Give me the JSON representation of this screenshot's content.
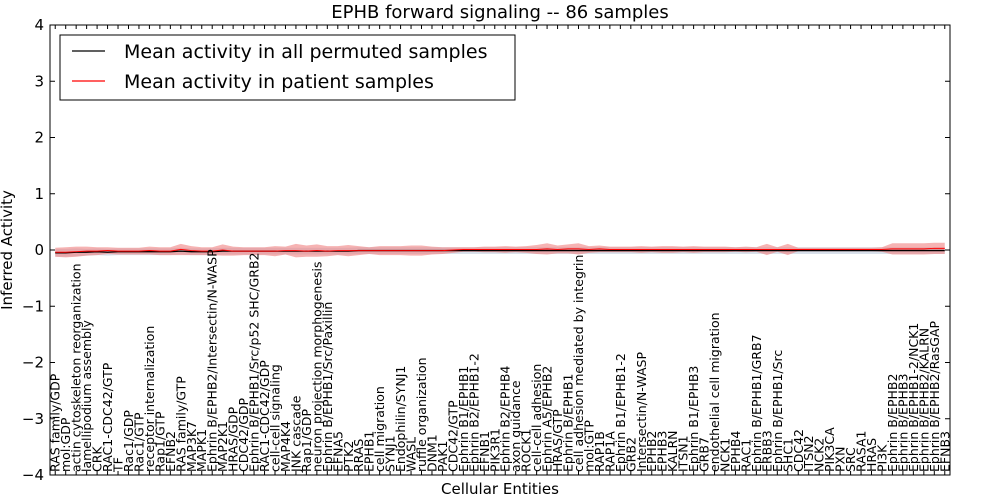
{
  "chart_data": {
    "type": "line",
    "title": "EPHB forward signaling -- 86 samples",
    "xlabel": "Cellular Entities",
    "ylabel": "Inferred Activity",
    "ylim": [
      -4,
      4
    ],
    "yticks": [
      -4,
      -3,
      -2,
      -1,
      0,
      1,
      2,
      3,
      4
    ],
    "ytick_labels": [
      "−4",
      "−3",
      "−2",
      "−1",
      "0",
      "1",
      "2",
      "3",
      "4"
    ],
    "grid": false,
    "legend_position": "top-left",
    "categories": [
      "RAS family/GDP",
      "mol:GDP",
      "actin cytoskeleton reorganization",
      "lamellipodium assembly",
      "CRK",
      "RAC1-CDC42/GTP",
      "TF",
      "Rac1/GDP",
      "Rac1/GTP",
      "receptor internalization",
      "Rap1/GTP",
      "EFNB2",
      "RAS family/GTP",
      "MAP3K7",
      "MAPK1",
      "Ephrin B/EPHB2/Intersectin/N-WASP",
      "MAP2K1",
      "HRAS/GDP",
      "CDC42/GDP",
      "Ephrin B/EPHB1/Src/p52 SHC/GRB2",
      "RAC1-CDC42/GDP",
      "cell-cell signaling",
      "MAP4K4",
      "JNK cascade",
      "Rap1/GDP",
      "neuron projection morphogenesis",
      "Ephrin B/EPHB1/Src/Paxillin",
      "EFNA5",
      "PTK2",
      "RRAS",
      "EPHB1",
      "cell migration",
      "SYNJ1",
      "Endophilin/SYNJ1",
      "WASL",
      "ruffle organization",
      "DNM1",
      "PAK1",
      "CDC42/GTP",
      "Ephrin B1/EPHB1",
      "Ephrin B2/EPHB1-2",
      "EFNB1",
      "PIK3R1",
      "Ephrin B2/EPHB4",
      "axon guidance",
      "ROCK1",
      "cell-cell adhesion",
      "Ephrin A5/EPHB2",
      "HRAS/GTP",
      "Ephrin B/EPHB1",
      "cell adhesion mediated by integrin",
      "mol:GTP",
      "RAP1B",
      "RAP1A",
      "Ephrin B1/EPHB1-2",
      "GRB2",
      "Intersectin/N-WASP",
      "EPHB2",
      "EPHB3",
      "KALRN",
      "ITSN1",
      "Ephrin B1/EPHB3",
      "GRB7",
      "endothelial cell migration",
      "NCK1",
      "EPHB4",
      "RAC1",
      "Ephrin B/EPHB1/GRB7",
      "ERBB3",
      "Ephrin B/EPHB1/Src",
      "SHC1",
      "CDC42",
      "ITSN2",
      "NCK2",
      "PIK3CA",
      "PXN",
      "SRC",
      "RASA1",
      "HRAS",
      "PI3K",
      "Ephrin B/EPHB2",
      "Ephrin B/EPHB3",
      "Ephrin B/EPHB1-2/NCK1",
      "Ephrin B/EPHB2/KALRN",
      "Ephrin B/EPHB2/RasGAP",
      "EFNB3"
    ],
    "series": [
      {
        "name": "Mean activity in all permuted samples",
        "color": "#000000",
        "band_color": "#b9c7d9",
        "values": [
          -0.05,
          -0.05,
          -0.04,
          -0.04,
          -0.03,
          -0.04,
          -0.03,
          -0.03,
          -0.03,
          -0.03,
          -0.03,
          -0.03,
          -0.02,
          -0.03,
          -0.03,
          -0.03,
          -0.02,
          -0.02,
          -0.02,
          -0.02,
          -0.02,
          -0.02,
          -0.02,
          -0.02,
          -0.02,
          -0.02,
          -0.02,
          -0.02,
          -0.02,
          -0.01,
          -0.01,
          -0.01,
          -0.01,
          -0.01,
          -0.01,
          -0.01,
          -0.01,
          -0.01,
          -0.01,
          -0.01,
          -0.01,
          -0.01,
          -0.01,
          -0.01,
          -0.01,
          -0.01,
          -0.01,
          -0.01,
          -0.01,
          -0.01,
          -0.01,
          -0.01,
          -0.01,
          -0.01,
          -0.01,
          -0.01,
          -0.01,
          -0.01,
          -0.01,
          -0.01,
          -0.01,
          -0.01,
          -0.01,
          -0.01,
          -0.01,
          -0.01,
          -0.01,
          -0.01,
          -0.01,
          -0.01,
          -0.01,
          -0.01,
          -0.01,
          -0.01,
          -0.01,
          -0.01,
          -0.01,
          -0.01,
          -0.01,
          -0.01,
          -0.01,
          -0.01,
          -0.01,
          -0.01,
          -0.01,
          -0.01
        ],
        "band": [
          0.07,
          0.07,
          0.07,
          0.06,
          0.06,
          0.06,
          0.06,
          0.06,
          0.06,
          0.06,
          0.06,
          0.06,
          0.06,
          0.06,
          0.06,
          0.06,
          0.06,
          0.06,
          0.06,
          0.06,
          0.06,
          0.06,
          0.06,
          0.06,
          0.06,
          0.06,
          0.06,
          0.06,
          0.06,
          0.06,
          0.06,
          0.06,
          0.06,
          0.06,
          0.06,
          0.06,
          0.06,
          0.06,
          0.06,
          0.06,
          0.06,
          0.06,
          0.06,
          0.06,
          0.06,
          0.06,
          0.06,
          0.06,
          0.06,
          0.06,
          0.06,
          0.06,
          0.06,
          0.06,
          0.06,
          0.06,
          0.06,
          0.06,
          0.06,
          0.06,
          0.06,
          0.06,
          0.06,
          0.06,
          0.06,
          0.06,
          0.06,
          0.06,
          0.06,
          0.06,
          0.06,
          0.06,
          0.06,
          0.06,
          0.06,
          0.06,
          0.06,
          0.06,
          0.06,
          0.06,
          0.06,
          0.06,
          0.06,
          0.06,
          0.06,
          0.06
        ]
      },
      {
        "name": "Mean activity in patient samples",
        "color": "#ff0000",
        "band_color": "#f08080",
        "values": [
          -0.04,
          -0.04,
          -0.03,
          -0.02,
          -0.02,
          -0.01,
          -0.02,
          -0.02,
          -0.02,
          -0.01,
          -0.02,
          -0.02,
          0.01,
          -0.01,
          -0.02,
          -0.02,
          0.0,
          -0.02,
          -0.02,
          -0.02,
          -0.02,
          -0.02,
          -0.01,
          -0.01,
          -0.02,
          -0.01,
          -0.02,
          -0.01,
          -0.01,
          -0.01,
          -0.01,
          -0.01,
          -0.01,
          -0.01,
          -0.01,
          -0.01,
          -0.01,
          -0.01,
          0.0,
          0.01,
          0.01,
          0.01,
          0.01,
          0.01,
          0.01,
          0.01,
          0.01,
          0.02,
          0.01,
          0.02,
          0.02,
          0.01,
          0.02,
          0.01,
          0.01,
          0.01,
          0.01,
          0.01,
          0.01,
          0.01,
          0.01,
          0.01,
          0.01,
          0.01,
          0.01,
          0.01,
          0.01,
          0.01,
          0.01,
          0.01,
          0.01,
          0.01,
          0.01,
          0.01,
          0.01,
          0.01,
          0.01,
          0.01,
          0.01,
          0.01,
          0.02,
          0.02,
          0.02,
          0.02,
          0.03,
          0.03
        ],
        "band": [
          0.08,
          0.09,
          0.09,
          0.08,
          0.07,
          0.06,
          0.06,
          0.06,
          0.06,
          0.07,
          0.07,
          0.07,
          0.1,
          0.08,
          0.07,
          0.07,
          0.1,
          0.08,
          0.07,
          0.07,
          0.07,
          0.09,
          0.07,
          0.12,
          0.1,
          0.11,
          0.09,
          0.08,
          0.1,
          0.08,
          0.06,
          0.08,
          0.08,
          0.08,
          0.09,
          0.09,
          0.07,
          0.06,
          0.05,
          0.04,
          0.04,
          0.05,
          0.05,
          0.06,
          0.05,
          0.06,
          0.08,
          0.1,
          0.07,
          0.08,
          0.1,
          0.06,
          0.06,
          0.05,
          0.05,
          0.05,
          0.06,
          0.05,
          0.06,
          0.06,
          0.05,
          0.06,
          0.05,
          0.05,
          0.05,
          0.04,
          0.05,
          0.04,
          0.1,
          0.04,
          0.1,
          0.03,
          0.03,
          0.03,
          0.03,
          0.03,
          0.03,
          0.03,
          0.03,
          0.04,
          0.1,
          0.1,
          0.1,
          0.1,
          0.1,
          0.1
        ]
      }
    ]
  }
}
